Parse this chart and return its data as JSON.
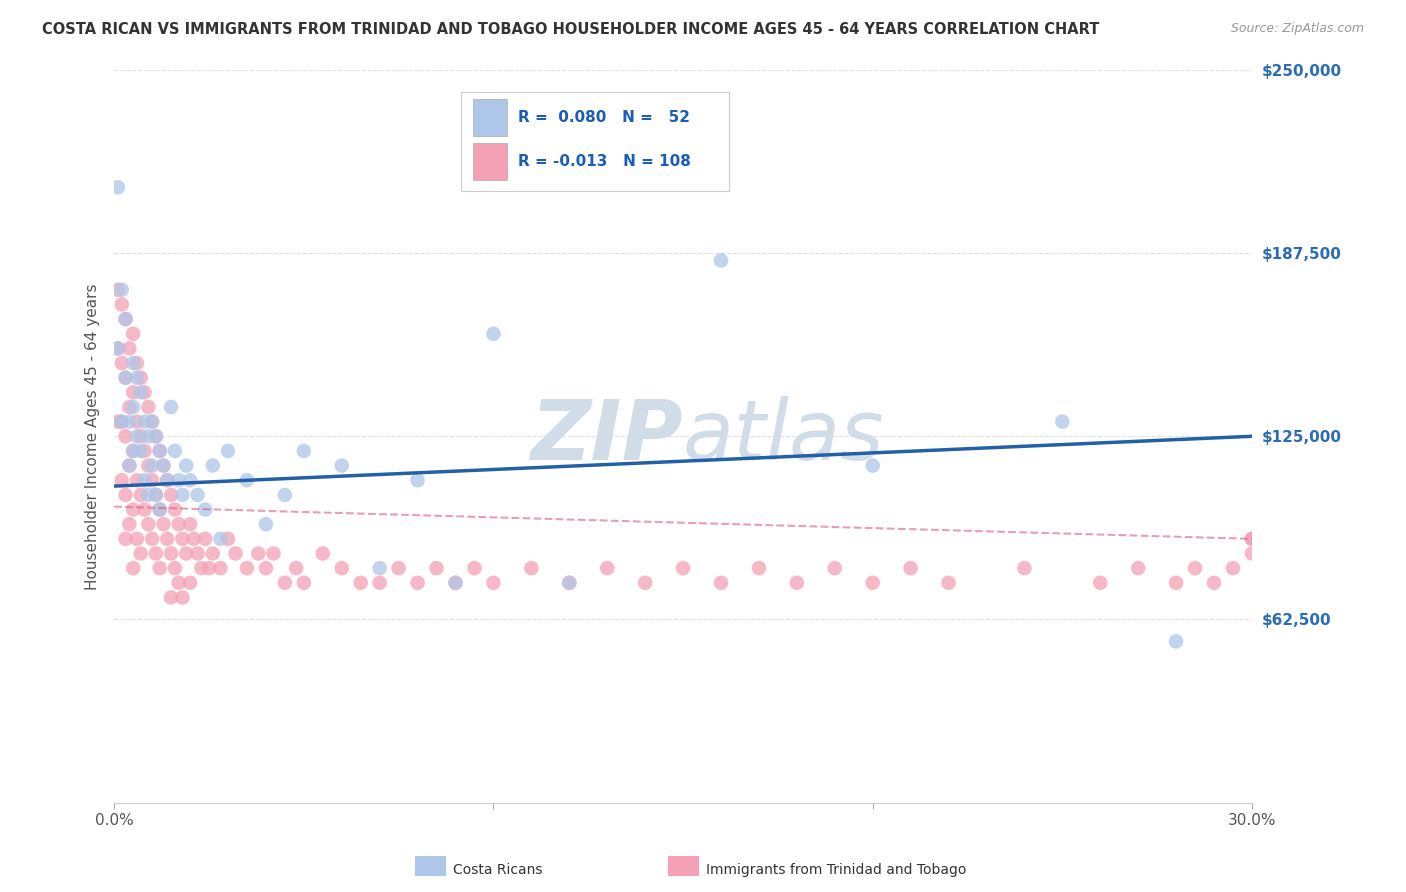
{
  "title": "COSTA RICAN VS IMMIGRANTS FROM TRINIDAD AND TOBAGO HOUSEHOLDER INCOME AGES 45 - 64 YEARS CORRELATION CHART",
  "source": "Source: ZipAtlas.com",
  "ylabel": "Householder Income Ages 45 - 64 years",
  "xlim": [
    0.0,
    0.3
  ],
  "ylim": [
    0,
    250000
  ],
  "yticks": [
    0,
    62500,
    125000,
    187500,
    250000
  ],
  "ytick_labels": [
    "",
    "$62,500",
    "$125,000",
    "$187,500",
    "$250,000"
  ],
  "xticks": [
    0.0,
    0.1,
    0.2,
    0.3
  ],
  "xtick_labels": [
    "0.0%",
    "",
    "",
    "30.0%"
  ],
  "blue_R": 0.08,
  "blue_N": 52,
  "pink_R": -0.013,
  "pink_N": 108,
  "blue_color": "#aec6e8",
  "pink_color": "#f4a0b5",
  "blue_line_color": "#2460a7",
  "pink_line_color": "#d45f7a",
  "legend_r_color": "#1a5eb8",
  "background_color": "#ffffff",
  "grid_color": "#cccccc",
  "watermark_color": "#d0dce8",
  "title_color": "#333333",
  "axis_label_color": "#555555",
  "ytick_color": "#2a6db5",
  "blue_trend_x0": 0.0,
  "blue_trend_y0": 108000,
  "blue_trend_x1": 0.3,
  "blue_trend_y1": 125000,
  "pink_trend_x0": 0.0,
  "pink_trend_y0": 101000,
  "pink_trend_x1": 0.3,
  "pink_trend_y1": 90000,
  "blue_scatter_x": [
    0.001,
    0.001,
    0.002,
    0.002,
    0.003,
    0.003,
    0.004,
    0.004,
    0.005,
    0.005,
    0.005,
    0.006,
    0.006,
    0.007,
    0.007,
    0.008,
    0.008,
    0.009,
    0.009,
    0.01,
    0.01,
    0.011,
    0.011,
    0.012,
    0.012,
    0.013,
    0.014,
    0.015,
    0.016,
    0.017,
    0.018,
    0.019,
    0.02,
    0.022,
    0.024,
    0.026,
    0.028,
    0.03,
    0.035,
    0.04,
    0.045,
    0.05,
    0.06,
    0.07,
    0.08,
    0.09,
    0.1,
    0.12,
    0.16,
    0.2,
    0.25,
    0.28
  ],
  "blue_scatter_y": [
    210000,
    155000,
    175000,
    130000,
    145000,
    165000,
    130000,
    115000,
    150000,
    135000,
    120000,
    145000,
    125000,
    140000,
    120000,
    130000,
    110000,
    125000,
    105000,
    130000,
    115000,
    125000,
    105000,
    120000,
    100000,
    115000,
    110000,
    135000,
    120000,
    110000,
    105000,
    115000,
    110000,
    105000,
    100000,
    115000,
    90000,
    120000,
    110000,
    95000,
    105000,
    120000,
    115000,
    80000,
    110000,
    75000,
    160000,
    75000,
    185000,
    115000,
    130000,
    55000
  ],
  "pink_scatter_x": [
    0.001,
    0.001,
    0.001,
    0.002,
    0.002,
    0.002,
    0.002,
    0.003,
    0.003,
    0.003,
    0.003,
    0.003,
    0.004,
    0.004,
    0.004,
    0.004,
    0.005,
    0.005,
    0.005,
    0.005,
    0.005,
    0.006,
    0.006,
    0.006,
    0.006,
    0.007,
    0.007,
    0.007,
    0.007,
    0.008,
    0.008,
    0.008,
    0.009,
    0.009,
    0.009,
    0.01,
    0.01,
    0.01,
    0.011,
    0.011,
    0.011,
    0.012,
    0.012,
    0.012,
    0.013,
    0.013,
    0.014,
    0.014,
    0.015,
    0.015,
    0.015,
    0.016,
    0.016,
    0.017,
    0.017,
    0.018,
    0.018,
    0.019,
    0.02,
    0.02,
    0.021,
    0.022,
    0.023,
    0.024,
    0.025,
    0.026,
    0.028,
    0.03,
    0.032,
    0.035,
    0.038,
    0.04,
    0.042,
    0.045,
    0.048,
    0.05,
    0.055,
    0.06,
    0.065,
    0.07,
    0.075,
    0.08,
    0.085,
    0.09,
    0.095,
    0.1,
    0.11,
    0.12,
    0.13,
    0.14,
    0.15,
    0.16,
    0.17,
    0.18,
    0.19,
    0.2,
    0.21,
    0.22,
    0.24,
    0.26,
    0.27,
    0.28,
    0.285,
    0.29,
    0.295,
    0.3,
    0.3,
    0.3
  ],
  "pink_scatter_y": [
    175000,
    155000,
    130000,
    170000,
    150000,
    130000,
    110000,
    165000,
    145000,
    125000,
    105000,
    90000,
    155000,
    135000,
    115000,
    95000,
    160000,
    140000,
    120000,
    100000,
    80000,
    150000,
    130000,
    110000,
    90000,
    145000,
    125000,
    105000,
    85000,
    140000,
    120000,
    100000,
    135000,
    115000,
    95000,
    130000,
    110000,
    90000,
    125000,
    105000,
    85000,
    120000,
    100000,
    80000,
    115000,
    95000,
    110000,
    90000,
    105000,
    85000,
    70000,
    100000,
    80000,
    95000,
    75000,
    90000,
    70000,
    85000,
    95000,
    75000,
    90000,
    85000,
    80000,
    90000,
    80000,
    85000,
    80000,
    90000,
    85000,
    80000,
    85000,
    80000,
    85000,
    75000,
    80000,
    75000,
    85000,
    80000,
    75000,
    75000,
    80000,
    75000,
    80000,
    75000,
    80000,
    75000,
    80000,
    75000,
    80000,
    75000,
    80000,
    75000,
    80000,
    75000,
    80000,
    75000,
    80000,
    75000,
    80000,
    75000,
    80000,
    75000,
    80000,
    75000,
    80000,
    90000,
    85000,
    90000
  ]
}
